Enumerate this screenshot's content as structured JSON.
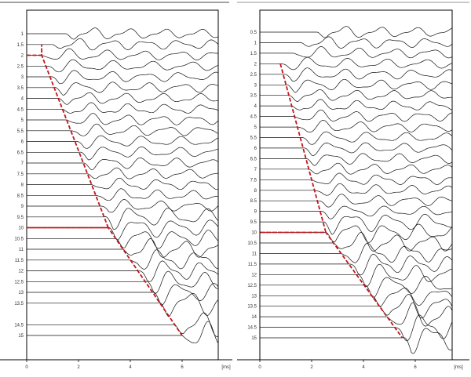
{
  "colors": {
    "trace": "#111111",
    "pick_line": "#c0161b",
    "frame": "#000000",
    "top_rule_left": "#444444",
    "top_rule_right": "#aaaaaa"
  },
  "chart_data": [
    {
      "type": "line",
      "title": "",
      "xlabel": "[ms]",
      "x_ticks": [
        "0",
        "2",
        "4",
        "6"
      ],
      "x_tick_values": [
        0,
        2,
        4,
        6
      ],
      "xlim": [
        0,
        7.4
      ],
      "trace_labels": [
        "1",
        "1.5",
        "2",
        "2.5",
        "3",
        "3.5",
        "4",
        "4.5",
        "5",
        "5.5",
        "6",
        "6.5",
        "7",
        "7.5",
        "8",
        "8.5",
        "9",
        "9.5",
        "10",
        "10.5",
        "11",
        "11.5",
        "12",
        "12.5",
        "13",
        "13.5",
        "14.5",
        "15"
      ],
      "trace_values": [
        1,
        1.5,
        2,
        2.5,
        3,
        3.5,
        4,
        4.5,
        5,
        5.5,
        6,
        6.5,
        7,
        7.5,
        8,
        8.5,
        9,
        9.5,
        10,
        10.5,
        11,
        11.5,
        12,
        12.5,
        13,
        13.5,
        14.5,
        15
      ],
      "ylim": [
        0,
        17
      ],
      "early_arrivals": {
        "1": 1.5,
        "1.5": 1.0
      },
      "pick_line": {
        "name": "first-arrival pick",
        "points": [
          [
            0,
            2
          ],
          [
            0.58,
            2
          ],
          [
            0.58,
            1.5
          ],
          [
            0.58,
            2
          ],
          [
            3.15,
            10
          ],
          [
            0,
            10
          ],
          [
            3.15,
            10
          ],
          [
            6.0,
            15
          ]
        ]
      },
      "arrival_knots": [
        [
          2,
          0.58
        ],
        [
          10,
          3.15
        ],
        [
          15,
          6.0
        ]
      ]
    },
    {
      "type": "line",
      "title": "",
      "xlabel": "[ms]",
      "x_ticks": [
        "0",
        "2",
        "4",
        "6"
      ],
      "x_tick_values": [
        0,
        2,
        4,
        6
      ],
      "xlim": [
        0,
        7.4
      ],
      "trace_labels": [
        "0.5",
        "1",
        "1.5",
        "2",
        "2.5",
        "3",
        "3.5",
        "4",
        "4.5",
        "5",
        "5.5",
        "6",
        "6.5",
        "7",
        "7.5",
        "8",
        "8.5",
        "9",
        "9.5",
        "10",
        "10.5",
        "11",
        "11.5",
        "12",
        "12.5",
        "13",
        "13.5",
        "14",
        "14.5",
        "15"
      ],
      "trace_values": [
        0.5,
        1,
        1.5,
        2,
        2.5,
        3,
        3.5,
        4,
        4.5,
        5,
        5.5,
        6,
        6.5,
        7,
        7.5,
        8,
        8.5,
        9,
        9.5,
        10,
        10.5,
        11,
        11.5,
        12,
        12.5,
        13,
        13.5,
        14,
        14.5,
        15
      ],
      "ylim": [
        0,
        17
      ],
      "early_arrivals": {
        "0.5": 2.2,
        "1": 1.6,
        "1.5": 1.3
      },
      "pick_line": {
        "name": "first-arrival pick",
        "points": [
          [
            0.79,
            2
          ],
          [
            2.55,
            10
          ],
          [
            0,
            10
          ],
          [
            2.55,
            10
          ],
          [
            5.5,
            15
          ]
        ]
      },
      "arrival_knots": [
        [
          2,
          0.79
        ],
        [
          10,
          2.55
        ],
        [
          15,
          5.5
        ]
      ]
    }
  ]
}
